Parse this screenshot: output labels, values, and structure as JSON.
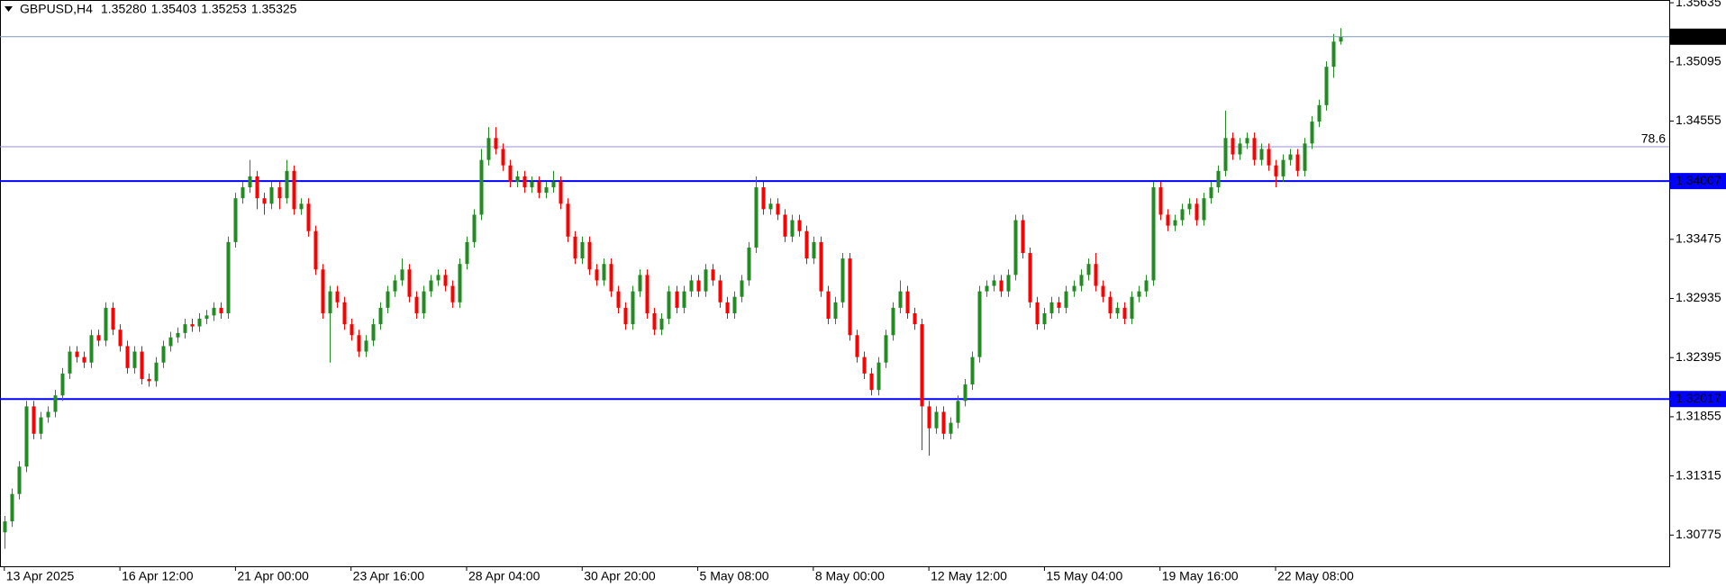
{
  "header": {
    "symbol": "GBPUSD,H4",
    "ohlc_labels": [
      "1.35280",
      "1.35403",
      "1.35253",
      "1.35325"
    ]
  },
  "chart_data": {
    "type": "candlestick",
    "up_color": "#228b22",
    "down_color": "#ff0000",
    "xlim": [
      -0.6,
      230.5
    ],
    "ylim": [
      1.3049,
      1.3566
    ],
    "yticks": [
      1.35635,
      1.35095,
      1.34555,
      1.33475,
      1.32935,
      1.32395,
      1.31855,
      1.31315,
      1.30775
    ],
    "xticks": [
      {
        "value": 0,
        "label": "13 Apr 2025"
      },
      {
        "value": 16,
        "label": "16 Apr 12:00"
      },
      {
        "value": 32,
        "label": "21 Apr 00:00"
      },
      {
        "value": 48,
        "label": "23 Apr 16:00"
      },
      {
        "value": 64,
        "label": "28 Apr 04:00"
      },
      {
        "value": 80,
        "label": "30 Apr 20:00"
      },
      {
        "value": 96,
        "label": "5 May 08:00"
      },
      {
        "value": 112,
        "label": "8 May 00:00"
      },
      {
        "value": 128,
        "label": "12 May 12:00"
      },
      {
        "value": 144,
        "label": "15 May 04:00"
      },
      {
        "value": 160,
        "label": "19 May 16:00"
      },
      {
        "value": 176,
        "label": "22 May 08:00"
      }
    ],
    "price_line_color": "#7f98b0",
    "hlines": [
      {
        "value": 1.34007,
        "color": "#0000ff"
      },
      {
        "value": 1.32017,
        "color": "#0000ff"
      }
    ],
    "levels": [
      {
        "value": 1.3432,
        "label": "78.6",
        "color": "#9b8fd8"
      }
    ],
    "open": [
      1.308,
      1.309,
      1.3115,
      1.314,
      1.3195,
      1.317,
      1.3185,
      1.319,
      1.3205,
      1.3225,
      1.3245,
      1.324,
      1.3235,
      1.326,
      1.3255,
      1.3285,
      1.3265,
      1.325,
      1.323,
      1.3245,
      1.322,
      1.3218,
      1.3235,
      1.325,
      1.3258,
      1.3262,
      1.327,
      1.3268,
      1.3275,
      1.3278,
      1.3285,
      1.328,
      1.3345,
      1.3385,
      1.3395,
      1.3405,
      1.3385,
      1.338,
      1.3395,
      1.3385,
      1.341,
      1.3375,
      1.338,
      1.3355,
      1.332,
      1.328,
      1.33,
      1.329,
      1.327,
      1.326,
      1.3245,
      1.3255,
      1.327,
      1.3285,
      1.33,
      1.331,
      1.332,
      1.3295,
      1.328,
      1.33,
      1.331,
      1.3315,
      1.3305,
      1.329,
      1.3325,
      1.3345,
      1.337,
      1.342,
      1.344,
      1.343,
      1.3415,
      1.34,
      1.3405,
      1.3395,
      1.34,
      1.339,
      1.3395,
      1.34,
      1.338,
      1.335,
      1.333,
      1.3345,
      1.332,
      1.331,
      1.3325,
      1.33,
      1.3285,
      1.327,
      1.33,
      1.3315,
      1.328,
      1.3265,
      1.3275,
      1.33,
      1.3285,
      1.33,
      1.331,
      1.33,
      1.332,
      1.331,
      1.329,
      1.328,
      1.3295,
      1.331,
      1.334,
      1.3395,
      1.3375,
      1.338,
      1.337,
      1.335,
      1.3365,
      1.3355,
      1.333,
      1.3345,
      1.33,
      1.3275,
      1.329,
      1.333,
      1.326,
      1.324,
      1.3225,
      1.321,
      1.3235,
      1.326,
      1.3285,
      1.33,
      1.328,
      1.327,
      1.3195,
      1.3175,
      1.319,
      1.317,
      1.318,
      1.32,
      1.3215,
      1.324,
      1.33,
      1.3305,
      1.331,
      1.33,
      1.3315,
      1.3365,
      1.3335,
      1.329,
      1.327,
      1.328,
      1.329,
      1.3285,
      1.33,
      1.3305,
      1.3315,
      1.3325,
      1.3305,
      1.3295,
      1.328,
      1.3285,
      1.3275,
      1.3295,
      1.33,
      1.331,
      1.3395,
      1.337,
      1.336,
      1.3365,
      1.3375,
      1.338,
      1.3365,
      1.3385,
      1.3395,
      1.341,
      1.344,
      1.3425,
      1.3435,
      1.344,
      1.342,
      1.343,
      1.3415,
      1.3405,
      1.342,
      1.3425,
      1.341,
      1.3435,
      1.3455,
      1.347,
      1.3505,
      1.3528
    ],
    "high": [
      1.3095,
      1.312,
      1.3145,
      1.32,
      1.32,
      1.319,
      1.3195,
      1.321,
      1.323,
      1.325,
      1.325,
      1.3245,
      1.3265,
      1.3265,
      1.329,
      1.329,
      1.327,
      1.3255,
      1.325,
      1.325,
      1.3225,
      1.324,
      1.3255,
      1.3263,
      1.3267,
      1.3275,
      1.3275,
      1.328,
      1.3283,
      1.329,
      1.329,
      1.335,
      1.339,
      1.34,
      1.342,
      1.341,
      1.339,
      1.34,
      1.34,
      1.342,
      1.3415,
      1.3385,
      1.3385,
      1.336,
      1.3325,
      1.3305,
      1.3305,
      1.3295,
      1.3275,
      1.3265,
      1.326,
      1.3275,
      1.329,
      1.3305,
      1.3315,
      1.333,
      1.3325,
      1.33,
      1.3305,
      1.3315,
      1.332,
      1.332,
      1.331,
      1.333,
      1.335,
      1.3375,
      1.343,
      1.345,
      1.345,
      1.3435,
      1.342,
      1.341,
      1.341,
      1.3405,
      1.3405,
      1.34,
      1.341,
      1.3405,
      1.3385,
      1.3355,
      1.335,
      1.335,
      1.3325,
      1.333,
      1.333,
      1.3305,
      1.329,
      1.3305,
      1.332,
      1.332,
      1.3285,
      1.328,
      1.3305,
      1.3305,
      1.3305,
      1.3315,
      1.3315,
      1.3325,
      1.3325,
      1.3315,
      1.3295,
      1.33,
      1.3315,
      1.3345,
      1.3405,
      1.34,
      1.3385,
      1.3385,
      1.3375,
      1.337,
      1.337,
      1.336,
      1.335,
      1.335,
      1.3305,
      1.3295,
      1.3335,
      1.3335,
      1.3265,
      1.3245,
      1.323,
      1.324,
      1.3265,
      1.329,
      1.331,
      1.3305,
      1.3285,
      1.3275,
      1.32,
      1.3195,
      1.3195,
      1.3185,
      1.3205,
      1.322,
      1.3245,
      1.3305,
      1.331,
      1.3315,
      1.3315,
      1.332,
      1.337,
      1.337,
      1.334,
      1.3295,
      1.3285,
      1.3295,
      1.3295,
      1.3305,
      1.331,
      1.332,
      1.333,
      1.3335,
      1.331,
      1.33,
      1.329,
      1.329,
      1.33,
      1.3305,
      1.3315,
      1.34,
      1.34,
      1.3375,
      1.337,
      1.338,
      1.3385,
      1.3385,
      1.339,
      1.34,
      1.3415,
      1.3465,
      1.3445,
      1.344,
      1.3445,
      1.3445,
      1.3435,
      1.3435,
      1.342,
      1.3425,
      1.343,
      1.343,
      1.344,
      1.346,
      1.3475,
      1.351,
      1.3535,
      1.35403
    ],
    "low": [
      1.3065,
      1.3085,
      1.311,
      1.3135,
      1.3165,
      1.3165,
      1.318,
      1.3185,
      1.32,
      1.322,
      1.3235,
      1.323,
      1.323,
      1.325,
      1.325,
      1.326,
      1.3245,
      1.3225,
      1.3225,
      1.3215,
      1.3213,
      1.3213,
      1.323,
      1.3245,
      1.3253,
      1.3257,
      1.3263,
      1.3263,
      1.327,
      1.3273,
      1.3275,
      1.3275,
      1.334,
      1.338,
      1.339,
      1.3375,
      1.337,
      1.3375,
      1.3375,
      1.338,
      1.337,
      1.337,
      1.335,
      1.3315,
      1.3275,
      1.3235,
      1.3285,
      1.3265,
      1.3255,
      1.324,
      1.324,
      1.325,
      1.3265,
      1.328,
      1.3295,
      1.3305,
      1.329,
      1.3275,
      1.3275,
      1.3295,
      1.3305,
      1.33,
      1.3285,
      1.3285,
      1.332,
      1.334,
      1.3365,
      1.3415,
      1.3425,
      1.341,
      1.3395,
      1.3395,
      1.339,
      1.339,
      1.3385,
      1.3385,
      1.339,
      1.3375,
      1.3345,
      1.3325,
      1.3325,
      1.3315,
      1.3305,
      1.3305,
      1.3295,
      1.328,
      1.3265,
      1.3265,
      1.3295,
      1.3275,
      1.326,
      1.326,
      1.327,
      1.328,
      1.328,
      1.3295,
      1.3295,
      1.3295,
      1.3305,
      1.3285,
      1.3275,
      1.3275,
      1.329,
      1.3305,
      1.3335,
      1.337,
      1.337,
      1.3365,
      1.3345,
      1.3345,
      1.335,
      1.3325,
      1.3325,
      1.3295,
      1.327,
      1.327,
      1.3285,
      1.3255,
      1.3235,
      1.322,
      1.3205,
      1.3205,
      1.323,
      1.3255,
      1.328,
      1.3275,
      1.3265,
      1.3155,
      1.315,
      1.317,
      1.3165,
      1.3165,
      1.3175,
      1.3195,
      1.321,
      1.3235,
      1.3295,
      1.33,
      1.3295,
      1.3295,
      1.331,
      1.333,
      1.3285,
      1.3265,
      1.3265,
      1.3275,
      1.328,
      1.328,
      1.3295,
      1.33,
      1.331,
      1.33,
      1.329,
      1.3275,
      1.3275,
      1.327,
      1.327,
      1.329,
      1.3295,
      1.3305,
      1.3365,
      1.3355,
      1.3355,
      1.336,
      1.337,
      1.336,
      1.336,
      1.338,
      1.339,
      1.3405,
      1.342,
      1.342,
      1.343,
      1.3415,
      1.3415,
      1.341,
      1.3395,
      1.34,
      1.3415,
      1.3405,
      1.3405,
      1.343,
      1.345,
      1.3465,
      1.3495,
      1.35253
    ],
    "close": [
      1.309,
      1.3115,
      1.314,
      1.3195,
      1.317,
      1.3185,
      1.319,
      1.3205,
      1.3225,
      1.3245,
      1.324,
      1.3235,
      1.326,
      1.3255,
      1.3285,
      1.3265,
      1.325,
      1.323,
      1.3245,
      1.322,
      1.3218,
      1.3235,
      1.325,
      1.3258,
      1.3262,
      1.327,
      1.3268,
      1.3275,
      1.3278,
      1.3285,
      1.328,
      1.3345,
      1.3385,
      1.3395,
      1.3405,
      1.3385,
      1.338,
      1.3395,
      1.3385,
      1.341,
      1.3375,
      1.338,
      1.3355,
      1.332,
      1.328,
      1.33,
      1.329,
      1.327,
      1.326,
      1.3245,
      1.3255,
      1.327,
      1.3285,
      1.33,
      1.331,
      1.332,
      1.3295,
      1.328,
      1.33,
      1.331,
      1.3315,
      1.3305,
      1.329,
      1.3325,
      1.3345,
      1.337,
      1.342,
      1.344,
      1.343,
      1.3415,
      1.34,
      1.3405,
      1.3395,
      1.34,
      1.339,
      1.3395,
      1.34,
      1.338,
      1.335,
      1.333,
      1.3345,
      1.332,
      1.331,
      1.3325,
      1.33,
      1.3285,
      1.327,
      1.33,
      1.3315,
      1.328,
      1.3265,
      1.3275,
      1.33,
      1.3285,
      1.33,
      1.331,
      1.33,
      1.332,
      1.331,
      1.329,
      1.328,
      1.3295,
      1.331,
      1.334,
      1.3395,
      1.3375,
      1.338,
      1.337,
      1.335,
      1.3365,
      1.3355,
      1.333,
      1.3345,
      1.33,
      1.3275,
      1.329,
      1.333,
      1.326,
      1.324,
      1.3225,
      1.321,
      1.3235,
      1.326,
      1.3285,
      1.33,
      1.328,
      1.327,
      1.3195,
      1.3175,
      1.319,
      1.317,
      1.318,
      1.32,
      1.3215,
      1.324,
      1.33,
      1.3305,
      1.331,
      1.33,
      1.3315,
      1.3365,
      1.3335,
      1.329,
      1.327,
      1.328,
      1.329,
      1.3285,
      1.33,
      1.3305,
      1.3315,
      1.3325,
      1.3305,
      1.3295,
      1.328,
      1.3285,
      1.3275,
      1.3295,
      1.33,
      1.331,
      1.3395,
      1.337,
      1.336,
      1.3365,
      1.3375,
      1.338,
      1.3365,
      1.3385,
      1.3395,
      1.341,
      1.344,
      1.3425,
      1.3435,
      1.344,
      1.342,
      1.343,
      1.3415,
      1.3405,
      1.342,
      1.3425,
      1.341,
      1.3435,
      1.3455,
      1.347,
      1.3505,
      1.3528,
      1.35325
    ]
  }
}
